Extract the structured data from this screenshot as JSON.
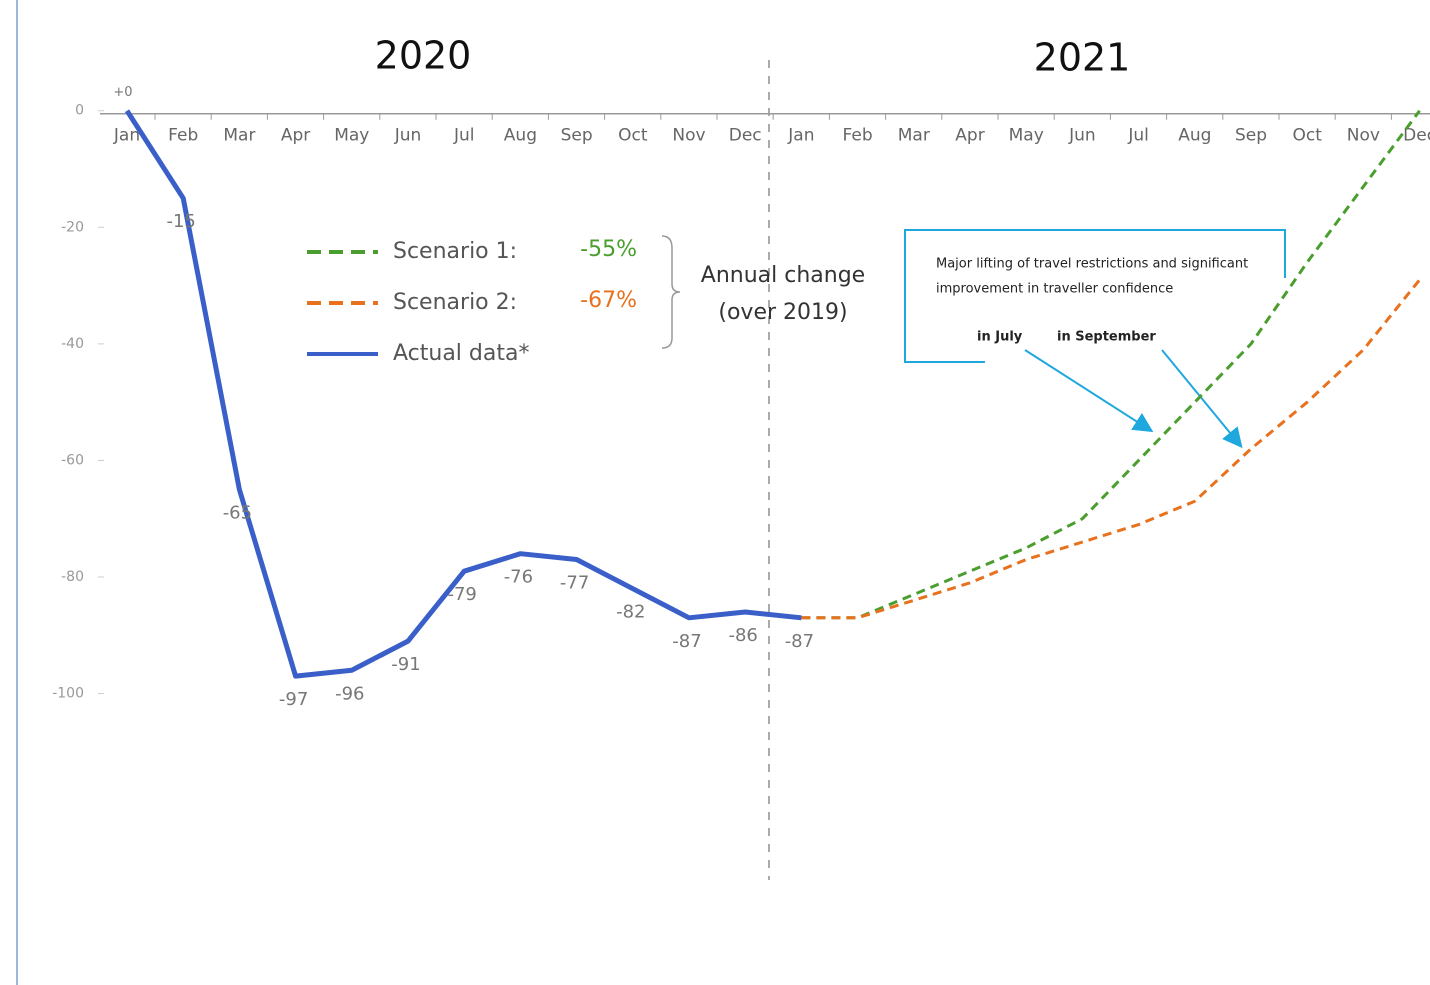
{
  "chart_data": {
    "type": "line",
    "year_labels": [
      "2020",
      "2021"
    ],
    "categories": [
      "Jan",
      "Feb",
      "Mar",
      "Apr",
      "May",
      "Jun",
      "Jul",
      "Aug",
      "Sep",
      "Oct",
      "Nov",
      "Dec",
      "Jan",
      "Feb",
      "Mar",
      "Apr",
      "May",
      "Jun",
      "Jul",
      "Aug",
      "Sep",
      "Oct",
      "Nov",
      "Dec"
    ],
    "ylim": [
      -150,
      19
    ],
    "yticks": [
      0,
      -20,
      -40,
      -60,
      -80,
      -100
    ],
    "series": [
      {
        "name": "Scenario 1:",
        "color": "#4a9e2e",
        "dashed": true,
        "annual_change": "-55%",
        "values": [
          null,
          null,
          null,
          null,
          null,
          null,
          null,
          null,
          null,
          null,
          null,
          null,
          -87,
          -87,
          -83,
          -79,
          -75,
          -70,
          -60,
          -50,
          -40,
          -26,
          -13,
          0
        ]
      },
      {
        "name": "Scenario 2:",
        "color": "#e8711e",
        "dashed": true,
        "annual_change": "-67%",
        "values": [
          null,
          null,
          null,
          null,
          null,
          null,
          null,
          null,
          null,
          null,
          null,
          null,
          -87,
          -87,
          -84,
          -81,
          -77,
          -74,
          -71,
          -67,
          -58,
          -50,
          -41,
          -29
        ]
      },
      {
        "name": "Actual data*",
        "color": "#3a5fc8",
        "dashed": false,
        "values": [
          0,
          -15,
          -65,
          -97,
          -96,
          -91,
          -79,
          -76,
          -77,
          -82,
          -87,
          -86,
          -87,
          null,
          null,
          null,
          null,
          null,
          null,
          null,
          null,
          null,
          null,
          null
        ],
        "value_labels": [
          "+0",
          "-15",
          "-65",
          "-97",
          "-96",
          "-91",
          "-79",
          "-76",
          "-77",
          "-82",
          "-87",
          "-86",
          "-87",
          null,
          null,
          null,
          null,
          null,
          null,
          null,
          null,
          null,
          null,
          null
        ]
      }
    ],
    "annual_change_label": [
      "Annual change",
      "(over 2019)"
    ],
    "annotation": {
      "text": [
        "Major lifting of travel restrictions and significant",
        "improvement in traveller confidence"
      ],
      "in_july": "in July",
      "in_september": "in September"
    }
  }
}
